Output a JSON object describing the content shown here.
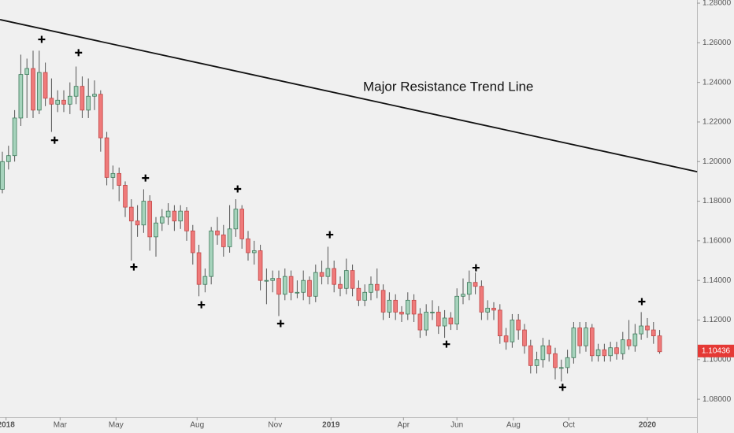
{
  "chart_data": {
    "type": "candlestick",
    "annotation": "Major Resistance Trend Line",
    "trendline": {
      "start_x": -0.38,
      "start_y": 1.2717,
      "end_x": 113.1,
      "end_y": 1.1949
    },
    "pivot_marks": [
      {
        "x": 6.4,
        "y": 1.2617
      },
      {
        "x": 8.5,
        "y": 1.2108
      },
      {
        "x": 12.4,
        "y": 1.255
      },
      {
        "x": 21.4,
        "y": 1.1468
      },
      {
        "x": 23.3,
        "y": 1.1917
      },
      {
        "x": 32.4,
        "y": 1.1277
      },
      {
        "x": 38.3,
        "y": 1.1862
      },
      {
        "x": 45.3,
        "y": 1.1182
      },
      {
        "x": 53.3,
        "y": 1.1631
      },
      {
        "x": 72.3,
        "y": 1.1078
      },
      {
        "x": 77.1,
        "y": 1.1464
      },
      {
        "x": 91.2,
        "y": 1.086
      },
      {
        "x": 104.1,
        "y": 1.1293
      }
    ],
    "up_color": "#a6d3bc",
    "up_border": "#3d7a5a",
    "down_color": "#ef7a7a",
    "down_border": "#c24848",
    "xlim": [
      -0.385,
      113.08
    ],
    "xticks": [
      {
        "value": 0.6,
        "label": "2018"
      },
      {
        "value": 9.4,
        "label": "Mar"
      },
      {
        "value": 18.5,
        "label": "May"
      },
      {
        "value": 31.7,
        "label": "Aug"
      },
      {
        "value": 44.4,
        "label": "Nov"
      },
      {
        "value": 53.5,
        "label": "2019"
      },
      {
        "value": 65.3,
        "label": "Apr"
      },
      {
        "value": 74,
        "label": "Jun"
      },
      {
        "value": 83.2,
        "label": "Aug"
      },
      {
        "value": 92.2,
        "label": "Oct"
      },
      {
        "value": 105,
        "label": "2020"
      }
    ],
    "ylim": [
      1.0709,
      1.2816
    ],
    "yticks": [
      {
        "value": 1.08,
        "label": "1.08000"
      },
      {
        "value": 1.1,
        "label": "1.10000"
      },
      {
        "value": 1.12,
        "label": "1.12000"
      },
      {
        "value": 1.14,
        "label": "1.14000"
      },
      {
        "value": 1.16,
        "label": "1.16000"
      },
      {
        "value": 1.18,
        "label": "1.18000"
      },
      {
        "value": 1.2,
        "label": "1.20000"
      },
      {
        "value": 1.22,
        "label": "1.22000"
      },
      {
        "value": 1.24,
        "label": "1.24000"
      },
      {
        "value": 1.26,
        "label": "1.26000"
      },
      {
        "value": 1.28,
        "label": "1.28000"
      }
    ],
    "last_price": 1.10436,
    "ohlc": [
      [
        1.186,
        1.205,
        1.184,
        1.2
      ],
      [
        1.2,
        1.208,
        1.196,
        1.203
      ],
      [
        1.203,
        1.226,
        1.2,
        1.222
      ],
      [
        1.222,
        1.254,
        1.218,
        1.244
      ],
      [
        1.244,
        1.252,
        1.222,
        1.247
      ],
      [
        1.247,
        1.256,
        1.222,
        1.226
      ],
      [
        1.226,
        1.256,
        1.224,
        1.245
      ],
      [
        1.245,
        1.25,
        1.228,
        1.232
      ],
      [
        1.232,
        1.242,
        1.215,
        1.229
      ],
      [
        1.229,
        1.236,
        1.225,
        1.231
      ],
      [
        1.231,
        1.236,
        1.225,
        1.229
      ],
      [
        1.229,
        1.24,
        1.224,
        1.233
      ],
      [
        1.233,
        1.248,
        1.229,
        1.238
      ],
      [
        1.238,
        1.243,
        1.222,
        1.226
      ],
      [
        1.226,
        1.242,
        1.222,
        1.233
      ],
      [
        1.233,
        1.241,
        1.226,
        1.234
      ],
      [
        1.234,
        1.236,
        1.205,
        1.212
      ],
      [
        1.212,
        1.215,
        1.188,
        1.192
      ],
      [
        1.192,
        1.198,
        1.186,
        1.194
      ],
      [
        1.194,
        1.197,
        1.18,
        1.188
      ],
      [
        1.188,
        1.19,
        1.172,
        1.177
      ],
      [
        1.177,
        1.181,
        1.15,
        1.17
      ],
      [
        1.17,
        1.178,
        1.162,
        1.168
      ],
      [
        1.168,
        1.186,
        1.164,
        1.18
      ],
      [
        1.18,
        1.183,
        1.155,
        1.162
      ],
      [
        1.162,
        1.172,
        1.152,
        1.169
      ],
      [
        1.169,
        1.176,
        1.165,
        1.172
      ],
      [
        1.172,
        1.179,
        1.168,
        1.175
      ],
      [
        1.175,
        1.178,
        1.165,
        1.17
      ],
      [
        1.17,
        1.178,
        1.166,
        1.175
      ],
      [
        1.175,
        1.177,
        1.16,
        1.165
      ],
      [
        1.165,
        1.168,
        1.148,
        1.154
      ],
      [
        1.154,
        1.158,
        1.132,
        1.138
      ],
      [
        1.138,
        1.146,
        1.134,
        1.142
      ],
      [
        1.142,
        1.167,
        1.138,
        1.165
      ],
      [
        1.165,
        1.172,
        1.158,
        1.163
      ],
      [
        1.163,
        1.168,
        1.152,
        1.157
      ],
      [
        1.157,
        1.178,
        1.154,
        1.166
      ],
      [
        1.166,
        1.181,
        1.162,
        1.176
      ],
      [
        1.176,
        1.178,
        1.156,
        1.161
      ],
      [
        1.161,
        1.165,
        1.15,
        1.154
      ],
      [
        1.154,
        1.16,
        1.148,
        1.155
      ],
      [
        1.155,
        1.158,
        1.135,
        1.14
      ],
      [
        1.14,
        1.146,
        1.128,
        1.14
      ],
      [
        1.14,
        1.145,
        1.134,
        1.141
      ],
      [
        1.141,
        1.145,
        1.122,
        1.133
      ],
      [
        1.133,
        1.146,
        1.13,
        1.142
      ],
      [
        1.142,
        1.145,
        1.13,
        1.134
      ],
      [
        1.134,
        1.14,
        1.131,
        1.134
      ],
      [
        1.134,
        1.145,
        1.13,
        1.14
      ],
      [
        1.14,
        1.142,
        1.128,
        1.132
      ],
      [
        1.132,
        1.148,
        1.129,
        1.144
      ],
      [
        1.144,
        1.15,
        1.138,
        1.142
      ],
      [
        1.142,
        1.157,
        1.138,
        1.146
      ],
      [
        1.146,
        1.15,
        1.134,
        1.138
      ],
      [
        1.138,
        1.142,
        1.132,
        1.136
      ],
      [
        1.136,
        1.151,
        1.133,
        1.145
      ],
      [
        1.145,
        1.148,
        1.132,
        1.136
      ],
      [
        1.136,
        1.14,
        1.127,
        1.13
      ],
      [
        1.13,
        1.138,
        1.127,
        1.134
      ],
      [
        1.134,
        1.142,
        1.13,
        1.138
      ],
      [
        1.138,
        1.146,
        1.131,
        1.135
      ],
      [
        1.135,
        1.138,
        1.12,
        1.124
      ],
      [
        1.124,
        1.134,
        1.121,
        1.13
      ],
      [
        1.13,
        1.133,
        1.12,
        1.124
      ],
      [
        1.124,
        1.127,
        1.119,
        1.123
      ],
      [
        1.123,
        1.134,
        1.12,
        1.13
      ],
      [
        1.13,
        1.133,
        1.119,
        1.123
      ],
      [
        1.123,
        1.126,
        1.111,
        1.115
      ],
      [
        1.115,
        1.128,
        1.112,
        1.124
      ],
      [
        1.124,
        1.13,
        1.12,
        1.124
      ],
      [
        1.124,
        1.127,
        1.113,
        1.117
      ],
      [
        1.117,
        1.125,
        1.111,
        1.121
      ],
      [
        1.121,
        1.124,
        1.115,
        1.118
      ],
      [
        1.118,
        1.136,
        1.115,
        1.132
      ],
      [
        1.132,
        1.141,
        1.128,
        1.133
      ],
      [
        1.133,
        1.145,
        1.13,
        1.139
      ],
      [
        1.139,
        1.144,
        1.133,
        1.137
      ],
      [
        1.137,
        1.14,
        1.12,
        1.124
      ],
      [
        1.124,
        1.13,
        1.12,
        1.126
      ],
      [
        1.126,
        1.129,
        1.12,
        1.125
      ],
      [
        1.125,
        1.128,
        1.108,
        1.112
      ],
      [
        1.112,
        1.116,
        1.105,
        1.109
      ],
      [
        1.109,
        1.123,
        1.106,
        1.12
      ],
      [
        1.12,
        1.123,
        1.11,
        1.115
      ],
      [
        1.115,
        1.118,
        1.103,
        1.107
      ],
      [
        1.107,
        1.11,
        1.093,
        1.097
      ],
      [
        1.097,
        1.104,
        1.093,
        1.1
      ],
      [
        1.1,
        1.111,
        1.096,
        1.107
      ],
      [
        1.107,
        1.11,
        1.099,
        1.103
      ],
      [
        1.103,
        1.106,
        1.09,
        1.096
      ],
      [
        1.096,
        1.1,
        1.089,
        1.096
      ],
      [
        1.096,
        1.105,
        1.093,
        1.101
      ],
      [
        1.101,
        1.119,
        1.098,
        1.116
      ],
      [
        1.116,
        1.119,
        1.103,
        1.107
      ],
      [
        1.107,
        1.119,
        1.104,
        1.116
      ],
      [
        1.116,
        1.118,
        1.099,
        1.102
      ],
      [
        1.102,
        1.108,
        1.099,
        1.105
      ],
      [
        1.105,
        1.108,
        1.099,
        1.102
      ],
      [
        1.102,
        1.109,
        1.099,
        1.106
      ],
      [
        1.106,
        1.109,
        1.1,
        1.103
      ],
      [
        1.103,
        1.114,
        1.1,
        1.11
      ],
      [
        1.11,
        1.12,
        1.105,
        1.107
      ],
      [
        1.107,
        1.118,
        1.104,
        1.113
      ],
      [
        1.113,
        1.124,
        1.11,
        1.117
      ],
      [
        1.117,
        1.121,
        1.111,
        1.115
      ],
      [
        1.115,
        1.119,
        1.108,
        1.112
      ],
      [
        1.112,
        1.115,
        1.103,
        1.104
      ]
    ]
  }
}
